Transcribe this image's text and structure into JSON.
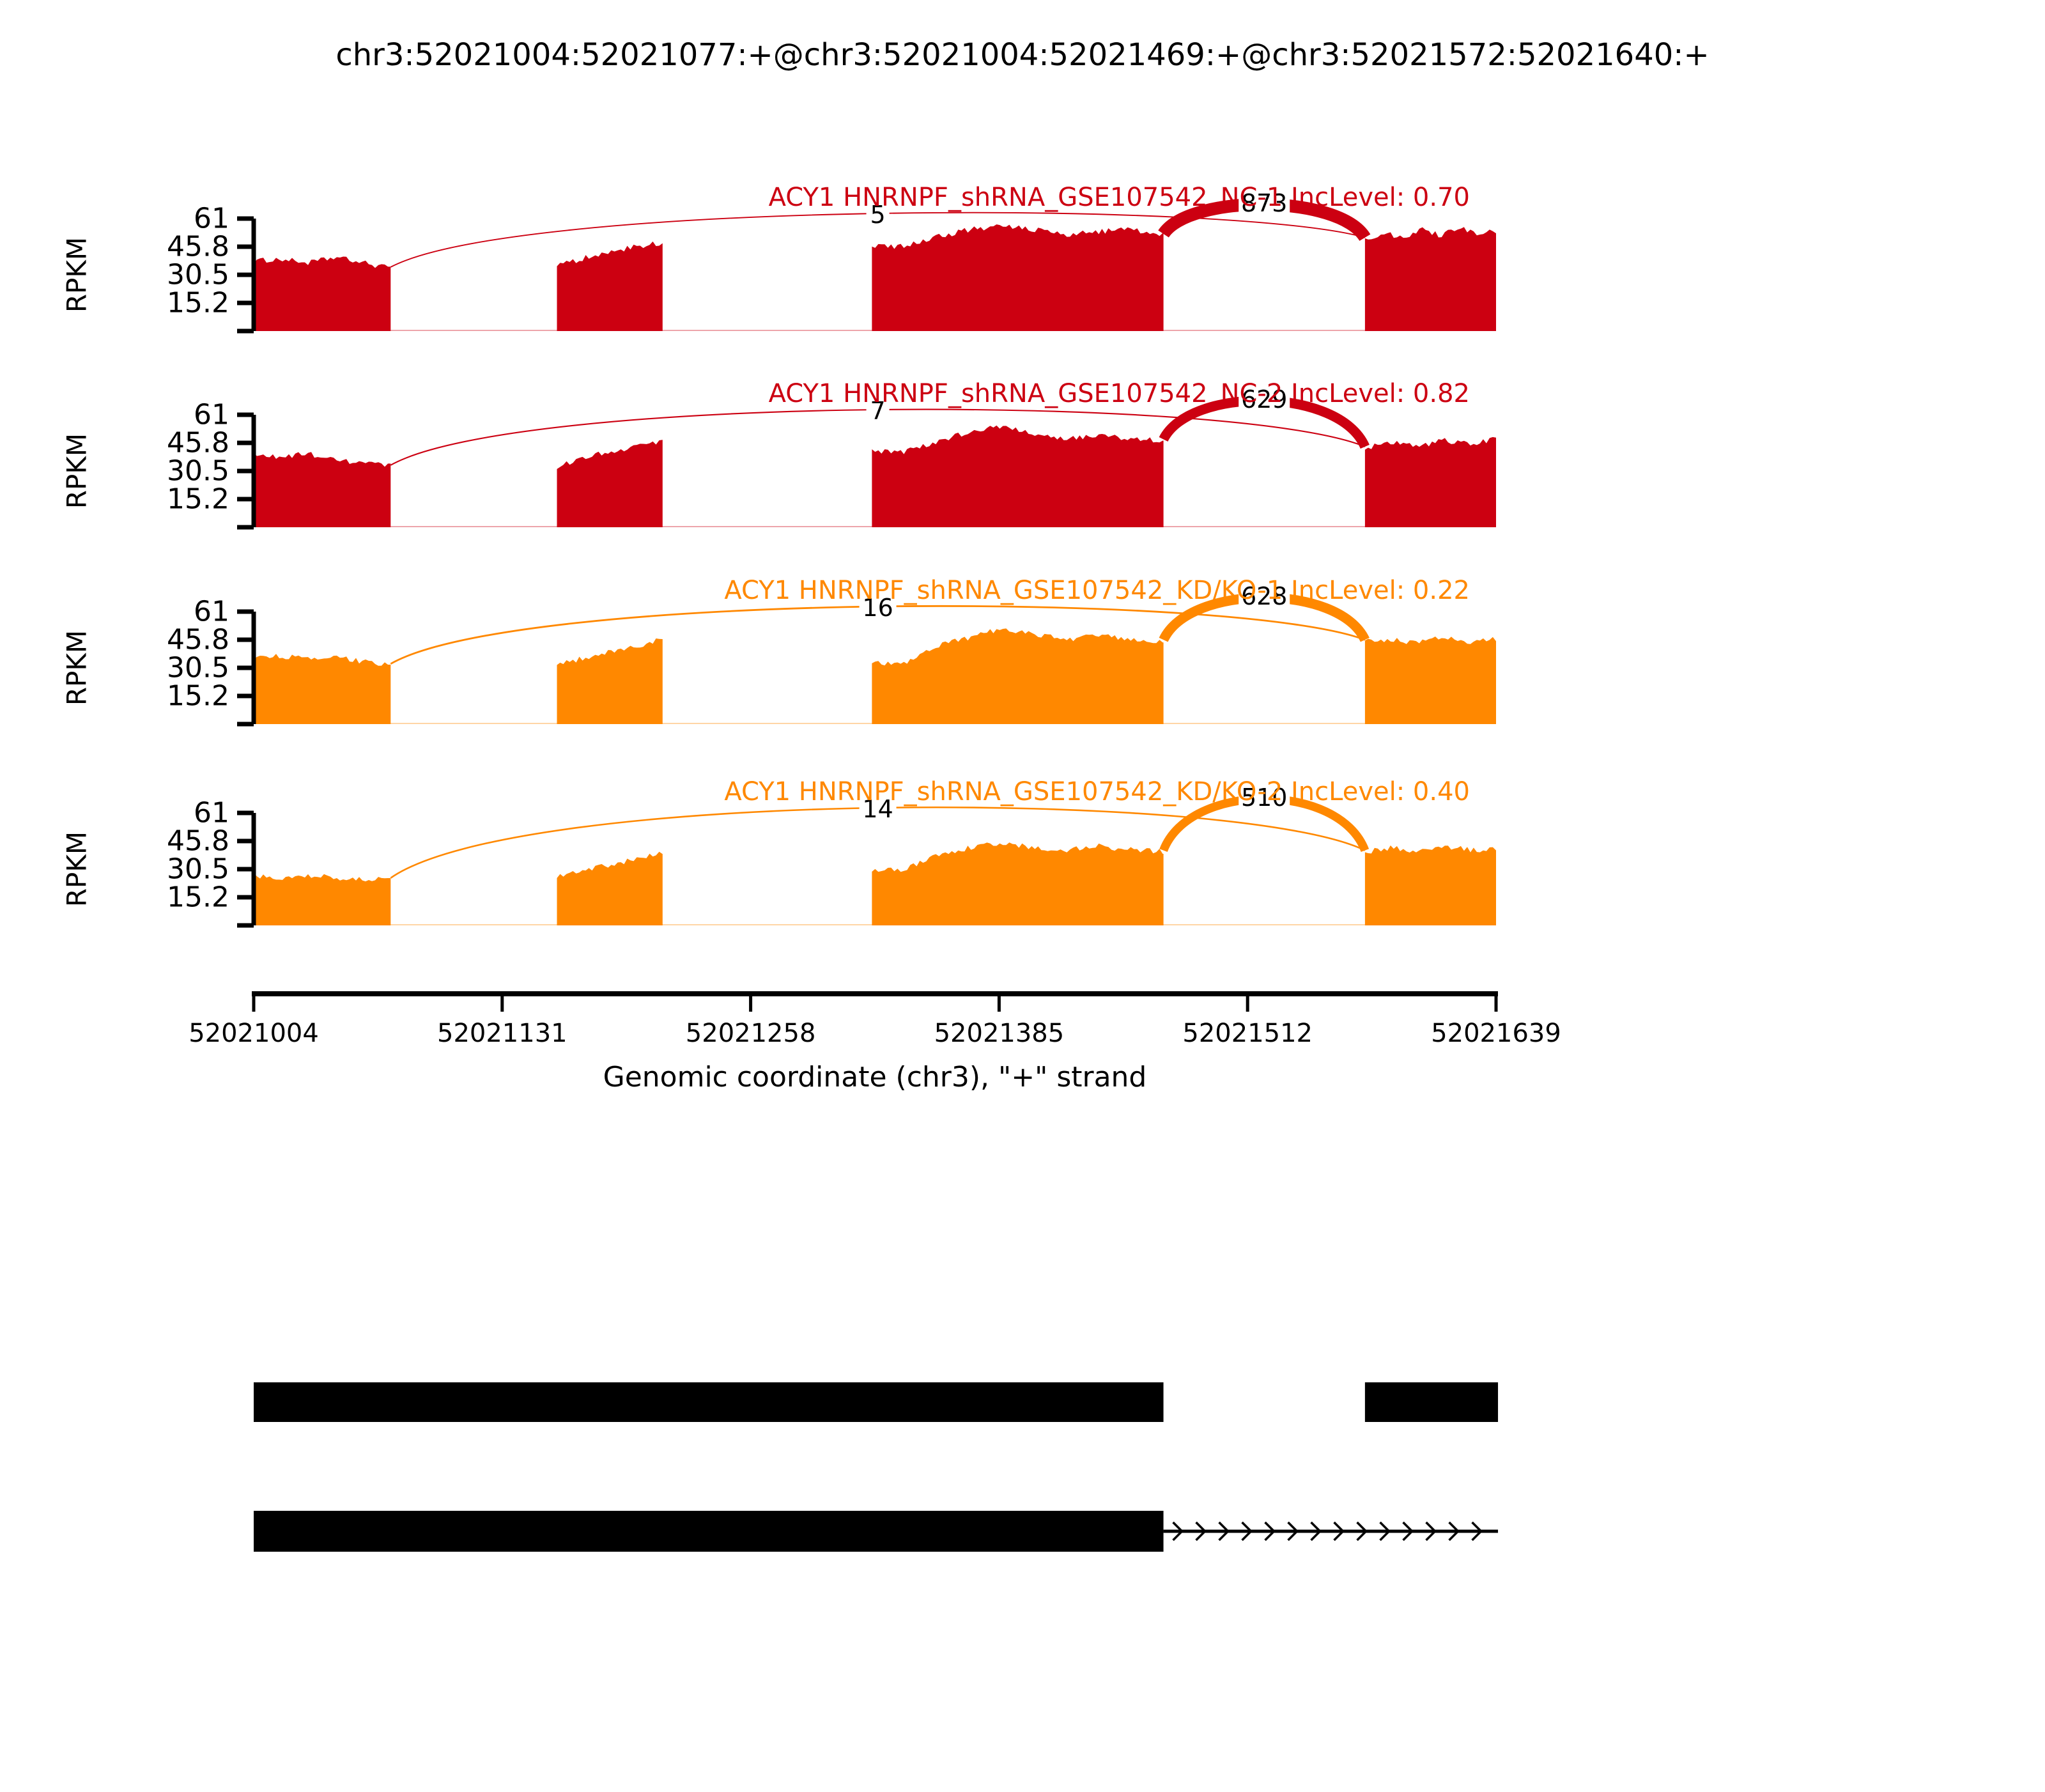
{
  "title": "chr3:52021004:52021077:+@chr3:52021004:52021469:+@chr3:52021572:52021640:+",
  "colors": {
    "red": "#CC0011",
    "orange": "#FF8800",
    "black": "#000000",
    "background": "#ffffff"
  },
  "x_axis": {
    "label": "Genomic coordinate (chr3), \"+\" strand",
    "tick_labels": [
      "52021004",
      "52021131",
      "52021258",
      "52021385",
      "52021512",
      "52021639"
    ],
    "tick_values": [
      52021004,
      52021131,
      52021258,
      52021385,
      52021512,
      52021639
    ],
    "range": [
      52021004,
      52021639
    ]
  },
  "y_axis": {
    "label": "RPKM",
    "tick_labels": [
      "61",
      "45.8",
      "30.5",
      "15.2"
    ],
    "tick_values": [
      61,
      45.75,
      30.5,
      15.25
    ],
    "max": 61
  },
  "chart_data": {
    "type": "area",
    "subtype": "sashimi-coverage-with-junctions",
    "tracks": [
      {
        "label": "ACY1 HNRNPF_shRNA_GSE107542_NC-1 IncLevel: 0.70",
        "sample": "NC-1",
        "inc_level": "0.70",
        "color_key": "red",
        "coverage_blocks": [
          {
            "start": 52021004,
            "end": 52021074,
            "heights": [
              38,
              39,
              37,
              40,
              37,
              34
            ]
          },
          {
            "start": 52021159,
            "end": 52021213,
            "heights": [
              35,
              41,
              45,
              48
            ]
          },
          {
            "start": 52021320,
            "end": 52021469,
            "heights": [
              46,
              46,
              51,
              55,
              57,
              55,
              52,
              54,
              55,
              52
            ]
          },
          {
            "start": 52021572,
            "end": 52021639,
            "heights": [
              50,
              53,
              51,
              55,
              52,
              56,
              53,
              54
            ]
          }
        ],
        "junctions": [
          {
            "from": 52021074,
            "to": 52021572,
            "count": 5,
            "kind": "skipping"
          },
          {
            "from": 52021469,
            "to": 52021572,
            "count": 873,
            "kind": "inclusion"
          }
        ]
      },
      {
        "label": "ACY1 HNRNPF_shRNA_GSE107542_NC-2 IncLevel: 0.82",
        "sample": "NC-2",
        "inc_level": "0.82",
        "color_key": "red",
        "coverage_blocks": [
          {
            "start": 52021004,
            "end": 52021074,
            "heights": [
              39,
              38,
              40,
              36,
              35,
              33
            ]
          },
          {
            "start": 52021159,
            "end": 52021213,
            "heights": [
              33,
              39,
              43,
              47
            ]
          },
          {
            "start": 52021320,
            "end": 52021469,
            "heights": [
              41,
              41,
              46,
              52,
              55,
              50,
              48,
              50,
              48,
              47
            ]
          },
          {
            "start": 52021572,
            "end": 52021639,
            "heights": [
              43,
              46,
              44,
              47,
              45,
              48
            ]
          }
        ],
        "junctions": [
          {
            "from": 52021074,
            "to": 52021572,
            "count": 7,
            "kind": "skipping"
          },
          {
            "from": 52021469,
            "to": 52021572,
            "count": 629,
            "kind": "inclusion"
          }
        ]
      },
      {
        "label": "ACY1 HNRNPF_shRNA_GSE107542_KD/KO-1 IncLevel: 0.22",
        "sample": "KD/KO-1",
        "inc_level": "0.22",
        "color_key": "orange",
        "coverage_blocks": [
          {
            "start": 52021004,
            "end": 52021074,
            "heights": [
              36,
              37,
              35,
              36,
              34,
              32
            ]
          },
          {
            "start": 52021159,
            "end": 52021213,
            "heights": [
              32,
              37,
              41,
              46
            ]
          },
          {
            "start": 52021320,
            "end": 52021469,
            "heights": [
              33,
              33,
              42,
              47,
              52,
              49,
              46,
              48,
              46,
              45
            ]
          },
          {
            "start": 52021572,
            "end": 52021639,
            "heights": [
              45,
              46,
              44,
              47,
              44,
              46
            ]
          }
        ],
        "junctions": [
          {
            "from": 52021074,
            "to": 52021572,
            "count": 16,
            "kind": "skipping"
          },
          {
            "from": 52021469,
            "to": 52021572,
            "count": 628,
            "kind": "inclusion"
          }
        ]
      },
      {
        "label": "ACY1 HNRNPF_shRNA_GSE107542_KD/KO-2 IncLevel: 0.40",
        "sample": "KD/KO-2",
        "inc_level": "0.40",
        "color_key": "orange",
        "coverage_blocks": [
          {
            "start": 52021004,
            "end": 52021074,
            "heights": [
              27,
              26,
              27,
              26,
              25,
              25
            ]
          },
          {
            "start": 52021159,
            "end": 52021213,
            "heights": [
              26,
              31,
              35,
              40
            ]
          },
          {
            "start": 52021320,
            "end": 52021469,
            "heights": [
              30,
              30,
              38,
              42,
              45,
              42,
              41,
              43,
              41,
              40
            ]
          },
          {
            "start": 52021572,
            "end": 52021639,
            "heights": [
              40,
              42,
              40,
              43,
              41,
              41
            ]
          }
        ],
        "junctions": [
          {
            "from": 52021074,
            "to": 52021572,
            "count": 14,
            "kind": "skipping"
          },
          {
            "from": 52021469,
            "to": 52021572,
            "count": 510,
            "kind": "inclusion"
          }
        ]
      }
    ],
    "transcripts": [
      {
        "exons": [
          [
            52021004,
            52021469
          ],
          [
            52021572,
            52021640
          ]
        ],
        "intron_line_end": 52021572,
        "arrow_direction": "right"
      },
      {
        "exons": [
          [
            52021004,
            52021469
          ]
        ],
        "intron_line_end": 52021640,
        "arrow_direction": "right"
      }
    ]
  }
}
